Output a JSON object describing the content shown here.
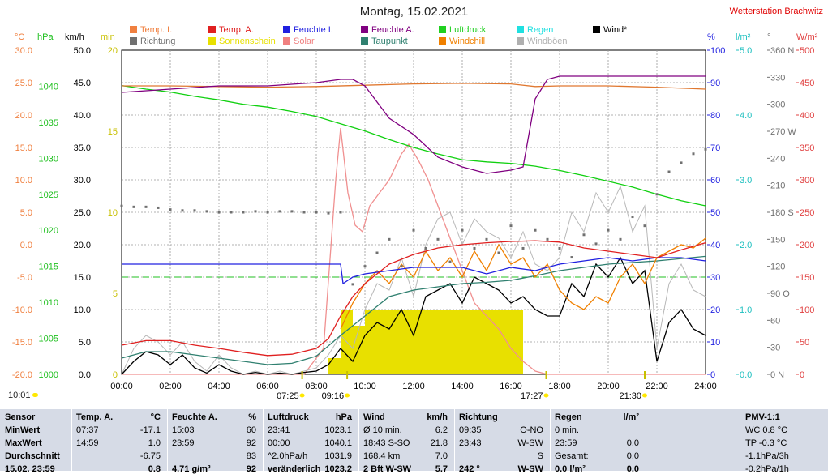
{
  "header": {
    "title": "Montag, 15.02.2021",
    "station": "Wetterstation Brachwitz"
  },
  "legend": [
    {
      "label": "Temp. I.",
      "color": "#f08040"
    },
    {
      "label": "Temp. A.",
      "color": "#e02020"
    },
    {
      "label": "Feuchte I.",
      "color": "#2020e0"
    },
    {
      "label": "Feuchte A.",
      "color": "#800080"
    },
    {
      "label": "Luftdruck",
      "color": "#20d020"
    },
    {
      "label": "Regen",
      "color": "#20e0e0"
    },
    {
      "label": "Wind*",
      "color": "#000000"
    },
    {
      "label": "Richtung",
      "color": "#707070"
    },
    {
      "label": "Sonnenschein",
      "color": "#e8e000"
    },
    {
      "label": "Solar",
      "color": "#f08080"
    },
    {
      "label": "Taupunkt",
      "color": "#308070"
    },
    {
      "label": "Windchill",
      "color": "#f08000"
    },
    {
      "label": "Windböen",
      "color": "#b0b0b0"
    }
  ],
  "units": {
    "temp": "°C",
    "hpa": "hPa",
    "kmh": "km/h",
    "min": "min",
    "pct": "%",
    "rain": "l/m²",
    "deg": "°",
    "wm2": "W/m²"
  },
  "chart_data": {
    "type": "line",
    "x_unit": "hour",
    "x_range": [
      0,
      24
    ],
    "x_ticks": [
      "00:00",
      "02:00",
      "04:00",
      "06:00",
      "08:00",
      "10:00",
      "12:00",
      "14:00",
      "16:00",
      "18:00",
      "20:00",
      "22:00",
      "24:00"
    ],
    "axes": {
      "temp": {
        "range": [
          -20,
          30
        ],
        "ticks": [
          "30.0",
          "25.0",
          "20.0",
          "15.0",
          "10.0",
          "5.0",
          "0.0",
          "-5.0",
          "-10.0",
          "-15.0",
          "-20.0"
        ],
        "color": "#f08040"
      },
      "pressure": {
        "range": [
          1000,
          1045
        ],
        "ticks": [
          "1040",
          "1035",
          "1030",
          "1025",
          "1020",
          "1015",
          "1010",
          "1005",
          "1000"
        ],
        "color": "#20c020"
      },
      "wind": {
        "range": [
          0,
          50
        ],
        "ticks": [
          "50.0",
          "45.0",
          "40.0",
          "35.0",
          "30.0",
          "25.0",
          "20.0",
          "15.0",
          "10.0",
          "5.0",
          "0.0"
        ],
        "color": "#000000"
      },
      "sunmin": {
        "range": [
          0,
          20
        ],
        "ticks": [
          "20",
          "15",
          "10",
          "5",
          "0"
        ],
        "color": "#c8c000"
      },
      "humidity": {
        "range": [
          0,
          100
        ],
        "ticks": [
          "100",
          "90",
          "80",
          "70",
          "60",
          "50",
          "40",
          "30",
          "20",
          "10",
          "0"
        ],
        "color": "#2020e0"
      },
      "rain": {
        "range": [
          0,
          5
        ],
        "ticks": [
          "5.0",
          "4.0",
          "3.0",
          "2.0",
          "1.0",
          "0.0"
        ],
        "color": "#20c0c0"
      },
      "direction": {
        "range": [
          0,
          360
        ],
        "ticks": [
          "360 N",
          "330",
          "300",
          "270 W",
          "240",
          "210",
          "180 S",
          "150",
          "120",
          "90 O",
          "60",
          "30",
          "0 N"
        ],
        "color": "#707070"
      },
      "solar": {
        "range": [
          0,
          500
        ],
        "ticks": [
          "500",
          "450",
          "400",
          "350",
          "300",
          "250",
          "200",
          "150",
          "100",
          "50",
          "0"
        ],
        "color": "#e04040"
      }
    },
    "series": [
      {
        "name": "Temp. I.",
        "axis": "temp",
        "color": "#e07830",
        "x": [
          0,
          2,
          4,
          6,
          8,
          10,
          12,
          14,
          16,
          17,
          18,
          20,
          22,
          24
        ],
        "y": [
          24.5,
          24.5,
          24.4,
          24.3,
          24.4,
          24.6,
          24.8,
          24.9,
          24.8,
          24.4,
          24.5,
          24.5,
          24.3,
          24.0
        ]
      },
      {
        "name": "Temp. A.",
        "axis": "temp",
        "color": "#e02020",
        "x": [
          0,
          1,
          2,
          3,
          4,
          5,
          6,
          7,
          8,
          8.5,
          9,
          9.5,
          10,
          11,
          12,
          13,
          14,
          15,
          16,
          17,
          18,
          19,
          20,
          21,
          22,
          23,
          24
        ],
        "y": [
          -15.5,
          -14.8,
          -14.8,
          -15.5,
          -16.0,
          -16.6,
          -17.1,
          -16.9,
          -16.0,
          -14.5,
          -11,
          -8,
          -6,
          -3,
          -1.5,
          -0.5,
          0,
          0.3,
          0.5,
          0.6,
          0.4,
          -0.5,
          -1.0,
          -1.5,
          -2.0,
          -0.8,
          0.3
        ]
      },
      {
        "name": "Feuchte I.",
        "axis": "humidity",
        "color": "#2020e0",
        "x": [
          0,
          4,
          7,
          8,
          9,
          9.1,
          9.5,
          10,
          11,
          12,
          14,
          15,
          16,
          17,
          18,
          19,
          20,
          21,
          22,
          23,
          24
        ],
        "y": [
          34,
          34,
          34,
          34,
          34,
          28,
          30,
          31,
          32,
          33,
          33,
          31,
          33,
          32,
          34,
          35,
          36,
          35,
          36,
          36,
          35
        ]
      },
      {
        "name": "Feuchte A.",
        "axis": "humidity",
        "color": "#800080",
        "x": [
          0,
          2,
          4,
          6,
          8,
          9,
          9.5,
          10,
          11,
          12,
          13,
          14,
          15,
          16,
          16.5,
          17,
          17.5,
          18,
          20,
          22,
          24
        ],
        "y": [
          87,
          88,
          89,
          89,
          90,
          91,
          91,
          89,
          79,
          74,
          67,
          64,
          62,
          63,
          64,
          85,
          91,
          92,
          92,
          92,
          92
        ]
      },
      {
        "name": "Luftdruck",
        "axis": "pressure",
        "color": "#10d010",
        "x": [
          0,
          1,
          2,
          3,
          4,
          5,
          6,
          7,
          8,
          9,
          10,
          11,
          12,
          13,
          14,
          15,
          16,
          17,
          18,
          19,
          20,
          21,
          22,
          23,
          24
        ],
        "y": [
          1040.1,
          1039.6,
          1039.2,
          1038.6,
          1038.1,
          1037.5,
          1037.1,
          1036.5,
          1035.8,
          1034.8,
          1033.8,
          1032.6,
          1031.5,
          1030.6,
          1029.8,
          1029.5,
          1029.3,
          1028.9,
          1028.3,
          1027.6,
          1026.8,
          1026.0,
          1025.0,
          1024.1,
          1023.4
        ]
      },
      {
        "name": "Taupunkt",
        "axis": "temp",
        "color": "#308070",
        "x": [
          0,
          1,
          2,
          3,
          4,
          5,
          6,
          7,
          8,
          9,
          10,
          11,
          12,
          13,
          14,
          15,
          16,
          17,
          18,
          20,
          22,
          24
        ],
        "y": [
          -17.5,
          -16.5,
          -16.5,
          -17,
          -17.5,
          -18,
          -18.5,
          -18.3,
          -17.2,
          -14,
          -11,
          -8,
          -7,
          -6.5,
          -6,
          -5.8,
          -5.5,
          -4.8,
          -4,
          -3,
          -2.5,
          -1.8
        ]
      },
      {
        "name": "Windchill",
        "axis": "temp",
        "color": "#f08000",
        "x": [
          9,
          9.5,
          10,
          10.5,
          11,
          11.5,
          12,
          12.5,
          13,
          13.5,
          14,
          14.5,
          15,
          15.5,
          16,
          16.5,
          17,
          17.5,
          18,
          18.5,
          19,
          19.5,
          20,
          20.5,
          21,
          21.5,
          22,
          22.5,
          23,
          23.5,
          24
        ],
        "y": [
          -13,
          -9,
          -6,
          -4,
          -6,
          -3,
          -5,
          -1,
          -4,
          -2,
          -5,
          -1,
          -4,
          0,
          -3,
          -2,
          -5,
          -3,
          -7,
          -9,
          -10,
          -8,
          -9,
          -5,
          -3,
          -6,
          -2,
          -1,
          0,
          -0.5,
          1
        ]
      },
      {
        "name": "Wind*",
        "axis": "wind",
        "color": "#000000",
        "x": [
          0,
          0.5,
          1,
          1.5,
          2,
          2.5,
          3,
          3.5,
          4,
          4.5,
          5,
          5.5,
          6,
          6.5,
          7,
          7.5,
          8,
          8.5,
          9,
          9.5,
          10,
          10.5,
          11,
          11.5,
          12,
          12.5,
          13,
          13.5,
          14,
          14.5,
          15,
          15.5,
          16,
          16.5,
          17,
          17.5,
          18,
          18.5,
          19,
          19.5,
          20,
          20.5,
          21,
          21.5,
          22,
          22.5,
          23,
          23.5,
          24
        ],
        "y": [
          0,
          2,
          3.5,
          3.0,
          1.5,
          3,
          1.0,
          0.2,
          1.5,
          0.5,
          0,
          0.3,
          0,
          0.2,
          0,
          0.3,
          0.5,
          1.5,
          4,
          2,
          6,
          8,
          7,
          10,
          6,
          12,
          13,
          14,
          11,
          15,
          14,
          13,
          11,
          12,
          10,
          9,
          9,
          14,
          12,
          17,
          15,
          18,
          14,
          16,
          2,
          8,
          10,
          7,
          6
        ]
      },
      {
        "name": "Windböen",
        "axis": "wind",
        "color": "#b8b8b8",
        "x": [
          0,
          0.5,
          1,
          1.5,
          2,
          2.5,
          3,
          3.5,
          4,
          4.5,
          5,
          5.5,
          6,
          6.5,
          7,
          7.5,
          8,
          8.5,
          9,
          9.5,
          10,
          10.5,
          11,
          11.5,
          12,
          12.5,
          13,
          13.5,
          14,
          14.5,
          15,
          15.5,
          16,
          16.5,
          17,
          17.5,
          18,
          18.5,
          19,
          19.5,
          20,
          20.5,
          21,
          21.5,
          22,
          22.5,
          23,
          23.5,
          24
        ],
        "y": [
          0,
          4,
          6,
          5,
          3,
          5,
          2,
          0.5,
          3,
          1,
          0,
          0.5,
          0,
          0.5,
          0,
          0.5,
          1,
          3,
          6,
          4,
          10,
          14,
          13,
          18,
          12,
          20,
          24,
          25,
          20,
          24,
          22,
          21,
          18,
          22,
          17,
          16,
          18,
          25,
          22,
          28,
          25,
          29,
          22,
          26,
          4,
          14,
          17,
          13,
          12
        ]
      },
      {
        "name": "Solar",
        "axis": "solar",
        "color": "#f09090",
        "x": [
          0,
          7.5,
          8.3,
          8.8,
          9.0,
          9.3,
          9.6,
          9.9,
          10.2,
          10.6,
          11,
          11.5,
          11.8,
          12.2,
          12.6,
          13,
          13.5,
          14,
          14.5,
          15,
          15.5,
          16,
          16.5,
          17,
          17.5,
          24
        ],
        "y": [
          0,
          0,
          40,
          300,
          380,
          280,
          230,
          220,
          260,
          280,
          300,
          340,
          355,
          330,
          300,
          260,
          210,
          160,
          110,
          90,
          70,
          40,
          20,
          5,
          0,
          0
        ]
      },
      {
        "name": "Sonnenschein",
        "axis": "sunmin",
        "type": "bar",
        "color": "#e8e000",
        "x": [
          8.5,
          9.0,
          9.5,
          10,
          10.5,
          11,
          11.5,
          12,
          12.5,
          13,
          13.5,
          14,
          14.5,
          15,
          15.5,
          16
        ],
        "y": [
          1,
          4,
          3,
          4,
          4,
          4,
          4,
          4,
          4,
          4,
          4,
          4,
          4,
          4,
          4,
          4
        ]
      },
      {
        "name": "Richtung",
        "axis": "direction",
        "type": "scatter",
        "color": "#707070",
        "x": [
          0,
          0.5,
          1,
          1.5,
          2,
          2.5,
          3,
          3.5,
          4,
          4.5,
          5,
          5.5,
          6,
          6.5,
          7,
          7.5,
          8,
          8.5,
          9,
          9.5,
          10,
          10.5,
          11,
          11.5,
          12,
          12.5,
          13,
          13.5,
          14,
          14.5,
          15,
          15.5,
          16,
          16.5,
          17,
          17.5,
          18,
          18.5,
          19,
          19.5,
          20,
          20.5,
          21,
          21.5,
          22,
          22.5,
          23,
          23.5,
          24
        ],
        "y": [
          187,
          186,
          186,
          185,
          183,
          182,
          182,
          181,
          180,
          180,
          180,
          181,
          180,
          181,
          181,
          180,
          180,
          179,
          180,
          100,
          120,
          135,
          150,
          120,
          160,
          140,
          150,
          125,
          160,
          140,
          150,
          135,
          165,
          140,
          160,
          150,
          140,
          130,
          155,
          145,
          160,
          150,
          175,
          165,
          200,
          225,
          235,
          245,
          250
        ]
      }
    ],
    "reference_line": {
      "axis": "temp",
      "value": -5,
      "color": "#20c020",
      "style": "dashed"
    },
    "events": [
      {
        "label": "07:25",
        "x": 7.42
      },
      {
        "label": "09:16",
        "x": 9.27
      },
      {
        "label": "17:27",
        "x": 17.45
      },
      {
        "label": "21:30",
        "x": 21.5
      }
    ],
    "left_time": "10:01"
  },
  "table": {
    "sensor": {
      "head": "Sensor",
      "rows": [
        "MinWert",
        "MaxWert",
        "Durchschnitt",
        "15.02. 23:59"
      ]
    },
    "temp": {
      "head": "Temp. A.",
      "unit": "°C",
      "rows": [
        [
          "07:37",
          "-17.1"
        ],
        [
          "14:59",
          "1.0"
        ],
        [
          "",
          "-6.75"
        ],
        [
          "",
          "0.8"
        ]
      ]
    },
    "hum": {
      "head": "Feuchte A.",
      "unit": "%",
      "rows": [
        [
          "15:03",
          "60"
        ],
        [
          "23:59",
          "92"
        ],
        [
          "",
          "83"
        ],
        [
          "4.71 g/m³",
          "92"
        ]
      ]
    },
    "press": {
      "head": "Luftdruck",
      "unit": "hPa",
      "rows": [
        [
          "23:41",
          "1023.1"
        ],
        [
          "00:00",
          "1040.1"
        ],
        [
          "^2.0hPa/h",
          "1031.9"
        ],
        [
          "veränderlich",
          "1023.2"
        ]
      ]
    },
    "wind": {
      "head": "Wind",
      "unit": "km/h",
      "rows": [
        [
          "Ø 10 min.",
          "6.2"
        ],
        [
          "18:43   S-SO",
          "21.8"
        ],
        [
          "168.4 km",
          "7.0"
        ],
        [
          "2 Bft W-SW",
          "5.7"
        ]
      ]
    },
    "dir": {
      "head": "Richtung",
      "unit": "",
      "rows": [
        [
          "09:35",
          "O-NO"
        ],
        [
          "23:43",
          "W-SW"
        ],
        [
          "",
          "S"
        ],
        [
          "242 °",
          "W-SW"
        ]
      ]
    },
    "rain": {
      "head": "Regen",
      "unit": "l/m²",
      "rows": [
        [
          "0 min.",
          ""
        ],
        [
          "23:59",
          "0.0"
        ],
        [
          "Gesamt:",
          "0.0"
        ],
        [
          "0.0 l/m²",
          "0.0"
        ]
      ]
    },
    "pmv": {
      "head": "PMV-1:1",
      "rows": [
        "WC 0.8 °C",
        "TP -0.3 °C",
        "-1.1hPa/3h",
        "-0.2hPa/1h"
      ]
    }
  }
}
